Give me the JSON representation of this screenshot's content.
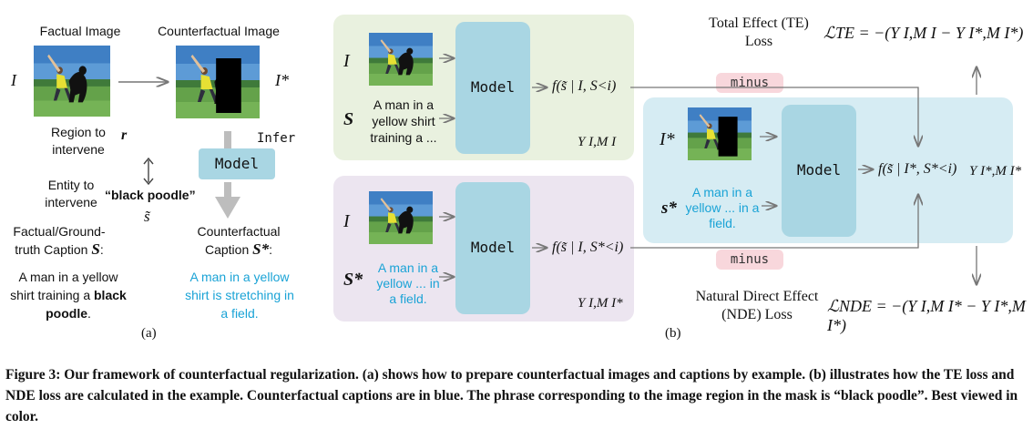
{
  "panel_a": {
    "factual_title": "Factual Image",
    "counterfactual_title": "Counterfactual Image",
    "var_I": "I",
    "var_I_star": "I*",
    "region_label": "Region to intervene",
    "r_label": "r",
    "entity_label": "Entity to intervene",
    "entity_phrase": "“black poodle”",
    "s_tilde": "s̃",
    "infer_label": "Infer",
    "model_label": "Model",
    "factual_caption_title": "Factual/Ground-truth Caption",
    "factual_caption_var": "S",
    "factual_caption_text_plain": "A man in a yellow shirt training a",
    "factual_caption_text_bold": "black poodle",
    "counterfactual_caption_title": "Counterfactual Caption",
    "counterfactual_caption_var": "S*",
    "counterfactual_caption_text": "A man in a yellow shirt is stretching in a field.",
    "sub_label": "(a)"
  },
  "panel_b": {
    "top": {
      "var_I": "I",
      "var_S": "S",
      "caption": "A man in a yellow shirt training a ...",
      "model_label": "Model",
      "func": "f(s̃ | I, S<i)",
      "output": "Y I,M I"
    },
    "middle": {
      "var_I": "I*",
      "var_S": "s*",
      "caption": "A man in a yellow ... in a field.",
      "model_label": "Model",
      "func": "f(s̃ | I*, S*<i)",
      "output": "Y I*,M I*"
    },
    "bottom": {
      "var_I": "I",
      "var_S": "S*",
      "caption": "A man in a yellow ... in a field.",
      "model_label": "Model",
      "func": "f(s̃ | I, S*<i)",
      "output": "Y I,M I*"
    },
    "minus_top": "minus",
    "minus_bottom": "minus",
    "te_title": "Total Effect (TE) Loss",
    "te_formula": "ℒTE = −(Y I,M I − Y I*,M I*)",
    "nde_title": "Natural Direct Effect (NDE) Loss",
    "nde_formula": "ℒNDE = −(Y I,M I* − Y I*,M I*)",
    "sub_label": "(b)"
  },
  "figure_caption": "Figure 3: Our framework of counterfactual regularization. (a) shows how to prepare counterfactual images and captions by example. (b) illustrates how the TE loss and NDE loss are calculated in the example. Counterfactual captions are in blue. The phrase corresponding to the image region in the mask is “black poodle”. Best viewed in color.",
  "colors": {
    "top_panel": "#e9f1df",
    "bottom_panel": "#ece5f0",
    "right_panel": "#d6ecf3",
    "model_box": "#a9d6e3",
    "pill": "#f8d7dc",
    "caption_blue": "#1aa3d6"
  }
}
